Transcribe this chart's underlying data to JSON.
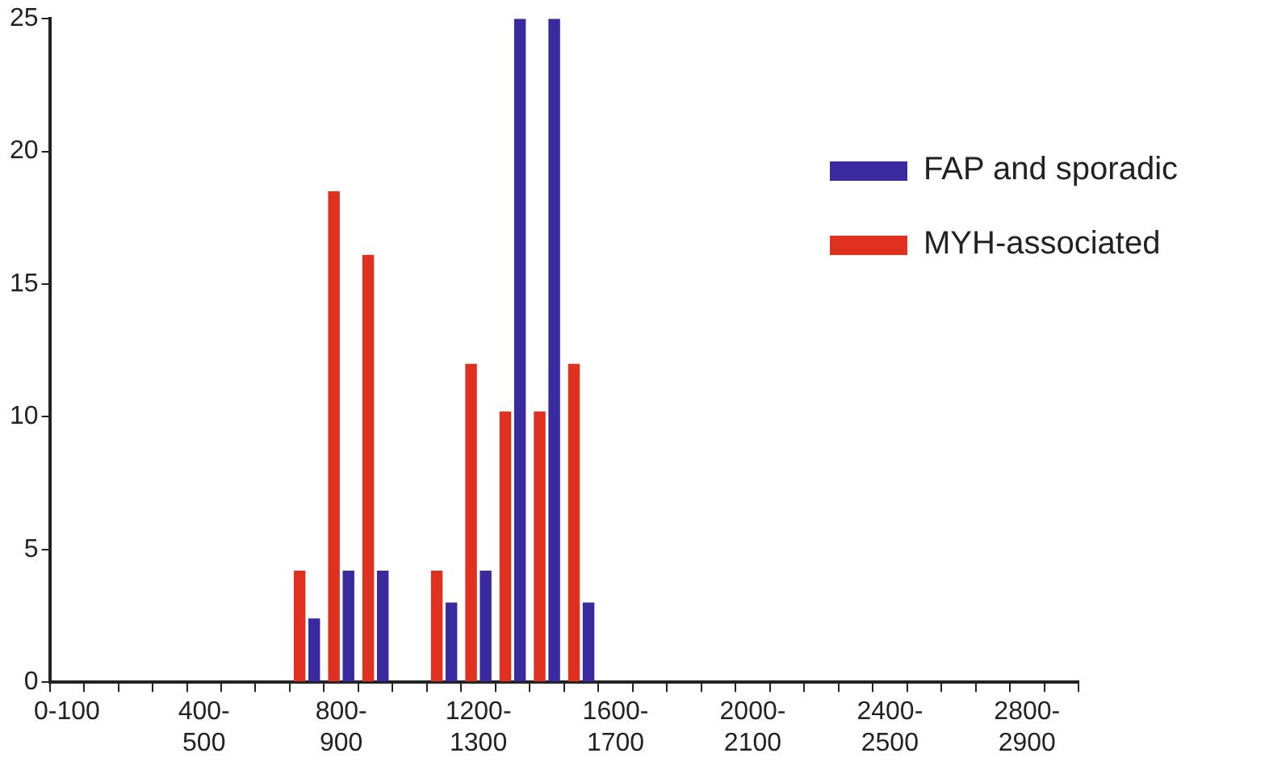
{
  "chart_data": {
    "type": "bar",
    "categories": [
      "0-100",
      null,
      null,
      null,
      "400-500",
      null,
      null,
      null,
      "800-900",
      null,
      null,
      null,
      "1200-1300",
      null,
      null,
      null,
      "1600-1700",
      null,
      null,
      null,
      "2000-2100",
      null,
      null,
      null,
      "2400-2500",
      null,
      null,
      null,
      "2800-2900",
      null
    ],
    "series": [
      {
        "name": "MYH-associated",
        "color": "#e03020",
        "values": [
          0,
          0,
          0,
          0,
          0,
          0,
          0,
          4.2,
          18.5,
          16.1,
          0,
          4.2,
          12,
          10.2,
          10.2,
          12,
          0,
          0,
          0,
          0,
          0,
          0,
          0,
          0,
          0,
          0,
          0,
          0,
          0,
          0
        ]
      },
      {
        "name": "FAP and sporadic",
        "color": "#3a2aa0",
        "values": [
          0,
          0,
          0,
          0,
          0,
          0,
          0,
          2.4,
          4.2,
          4.2,
          0,
          3,
          4.2,
          25,
          25,
          3,
          0,
          0,
          0,
          0,
          0,
          0,
          0,
          0,
          0,
          0,
          0,
          0,
          0,
          0
        ]
      }
    ],
    "ylim": [
      0,
      25
    ],
    "yticks": [
      0,
      5,
      10,
      15,
      20,
      25
    ],
    "grid": false,
    "legend": "right"
  }
}
